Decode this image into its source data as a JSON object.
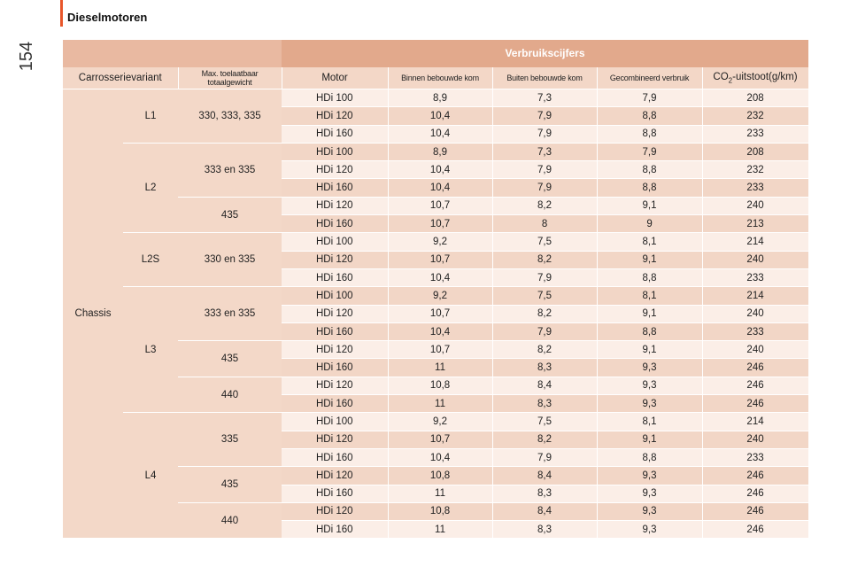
{
  "header": {
    "section_title": "Dieselmotoren",
    "page_number": "154"
  },
  "table": {
    "title": "Verbruikscijfers",
    "columns": {
      "body": "Carrosserievariant",
      "weight": "Max. toelaatbaar totaalgewicht",
      "engine": "Motor",
      "urban": "Binnen bebouwde kom",
      "extra_urban": "Buiten bebouwde kom",
      "combined": "Gecombineerd verbruik",
      "co2_prefix": "CO",
      "co2_sub": "2",
      "co2_suffix": "-uitstoot(g/km)"
    },
    "body_type": "Chassis",
    "rows": [
      {
        "len": "L1",
        "wt": "330, 333, 335",
        "eng": "HDi 100",
        "u": "8,9",
        "e": "7,3",
        "c": "7,9",
        "co2": "208"
      },
      {
        "len": "L1",
        "wt": "330, 333, 335",
        "eng": "HDi 120",
        "u": "10,4",
        "e": "7,9",
        "c": "8,8",
        "co2": "232"
      },
      {
        "len": "L1",
        "wt": "330, 333, 335",
        "eng": "HDi 160",
        "u": "10,4",
        "e": "7,9",
        "c": "8,8",
        "co2": "233"
      },
      {
        "len": "L2",
        "wt": "333 en 335",
        "eng": "HDi 100",
        "u": "8,9",
        "e": "7,3",
        "c": "7,9",
        "co2": "208"
      },
      {
        "len": "L2",
        "wt": "333 en 335",
        "eng": "HDi 120",
        "u": "10,4",
        "e": "7,9",
        "c": "8,8",
        "co2": "232"
      },
      {
        "len": "L2",
        "wt": "333 en 335",
        "eng": "HDi 160",
        "u": "10,4",
        "e": "7,9",
        "c": "8,8",
        "co2": "233"
      },
      {
        "len": "L2",
        "wt": "435",
        "eng": "HDi 120",
        "u": "10,7",
        "e": "8,2",
        "c": "9,1",
        "co2": "240"
      },
      {
        "len": "L2",
        "wt": "435",
        "eng": "HDi 160",
        "u": "10,7",
        "e": "8",
        "c": "9",
        "co2": "213"
      },
      {
        "len": "L2S",
        "wt": "330 en 335",
        "eng": "HDi 100",
        "u": "9,2",
        "e": "7,5",
        "c": "8,1",
        "co2": "214"
      },
      {
        "len": "L2S",
        "wt": "330 en 335",
        "eng": "HDi 120",
        "u": "10,7",
        "e": "8,2",
        "c": "9,1",
        "co2": "240"
      },
      {
        "len": "L2S",
        "wt": "330 en 335",
        "eng": "HDi 160",
        "u": "10,4",
        "e": "7,9",
        "c": "8,8",
        "co2": "233"
      },
      {
        "len": "L3",
        "wt": "333 en 335",
        "eng": "HDi 100",
        "u": "9,2",
        "e": "7,5",
        "c": "8,1",
        "co2": "214"
      },
      {
        "len": "L3",
        "wt": "333 en 335",
        "eng": "HDi 120",
        "u": "10,7",
        "e": "8,2",
        "c": "9,1",
        "co2": "240"
      },
      {
        "len": "L3",
        "wt": "333 en 335",
        "eng": "HDi 160",
        "u": "10,4",
        "e": "7,9",
        "c": "8,8",
        "co2": "233"
      },
      {
        "len": "L3",
        "wt": "435",
        "eng": "HDi 120",
        "u": "10,7",
        "e": "8,2",
        "c": "9,1",
        "co2": "240"
      },
      {
        "len": "L3",
        "wt": "435",
        "eng": "HDi 160",
        "u": "11",
        "e": "8,3",
        "c": "9,3",
        "co2": "246"
      },
      {
        "len": "L3",
        "wt": "440",
        "eng": "HDi 120",
        "u": "10,8",
        "e": "8,4",
        "c": "9,3",
        "co2": "246"
      },
      {
        "len": "L3",
        "wt": "440",
        "eng": "HDi 160",
        "u": "11",
        "e": "8,3",
        "c": "9,3",
        "co2": "246"
      },
      {
        "len": "L4",
        "wt": "335",
        "eng": "HDi 100",
        "u": "9,2",
        "e": "7,5",
        "c": "8,1",
        "co2": "214"
      },
      {
        "len": "L4",
        "wt": "335",
        "eng": "HDi 120",
        "u": "10,7",
        "e": "8,2",
        "c": "9,1",
        "co2": "240"
      },
      {
        "len": "L4",
        "wt": "335",
        "eng": "HDi 160",
        "u": "10,4",
        "e": "7,9",
        "c": "8,8",
        "co2": "233"
      },
      {
        "len": "L4",
        "wt": "435",
        "eng": "HDi 120",
        "u": "10,8",
        "e": "8,4",
        "c": "9,3",
        "co2": "246"
      },
      {
        "len": "L4",
        "wt": "435",
        "eng": "HDi 160",
        "u": "11",
        "e": "8,3",
        "c": "9,3",
        "co2": "246"
      },
      {
        "len": "L4",
        "wt": "440",
        "eng": "HDi 120",
        "u": "10,8",
        "e": "8,4",
        "c": "9,3",
        "co2": "246"
      },
      {
        "len": "L4",
        "wt": "440",
        "eng": "HDi 160",
        "u": "11",
        "e": "8,3",
        "c": "9,3",
        "co2": "246"
      }
    ]
  },
  "colors": {
    "accent": "#e8562a",
    "title_bg": "#e2a98c",
    "row_dark": "#f2d6c6",
    "row_light": "#fbeee7"
  }
}
